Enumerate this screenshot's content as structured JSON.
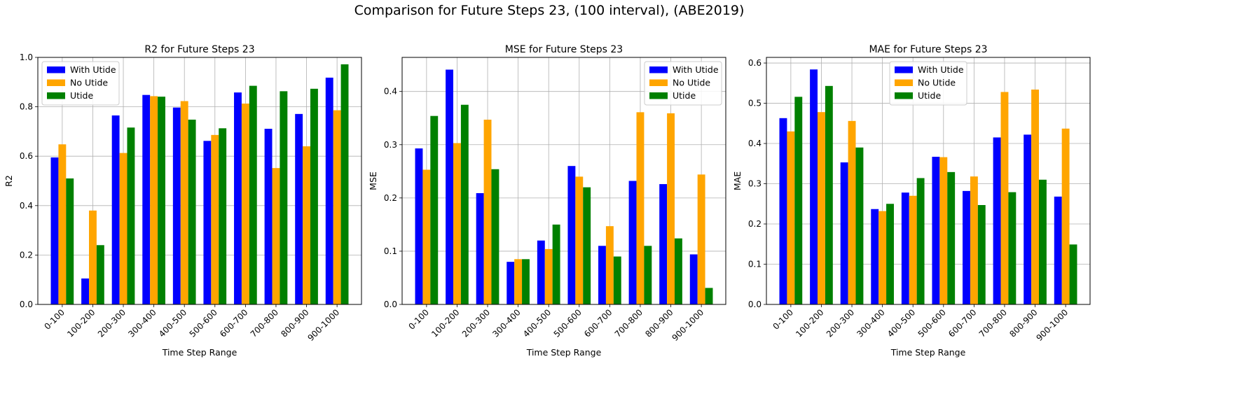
{
  "suptitle": "Comparison for Future Steps 23, (100 interval), (ABE2019)",
  "colors": {
    "With Utide": "#0000ff",
    "No Utide": "#ffa500",
    "Utide": "#008000"
  },
  "chart_data": [
    {
      "type": "bar",
      "title": "R2 for Future Steps 23",
      "xlabel": "Time Step Range",
      "ylabel": "R2",
      "ylim": [
        0,
        1.0
      ],
      "yticks": [
        "0.0",
        "0.2",
        "0.4",
        "0.6",
        "0.8",
        "1.0"
      ],
      "grid": true,
      "legend": "upper left",
      "categories": [
        "0-100",
        "100-200",
        "200-300",
        "300-400",
        "400-500",
        "500-600",
        "600-700",
        "700-800",
        "800-900",
        "900-1000"
      ],
      "series": [
        {
          "name": "With Utide",
          "values": [
            0.595,
            0.105,
            0.765,
            0.848,
            0.797,
            0.662,
            0.858,
            0.711,
            0.771,
            0.918
          ]
        },
        {
          "name": "No Utide",
          "values": [
            0.648,
            0.38,
            0.613,
            0.843,
            0.823,
            0.686,
            0.813,
            0.552,
            0.64,
            0.786
          ]
        },
        {
          "name": "Utide",
          "values": [
            0.51,
            0.24,
            0.716,
            0.841,
            0.748,
            0.713,
            0.885,
            0.863,
            0.873,
            0.972
          ]
        }
      ]
    },
    {
      "type": "bar",
      "title": "MSE for Future Steps 23",
      "xlabel": "Time Step Range",
      "ylabel": "MSE",
      "ylim": [
        0,
        0.464
      ],
      "yticks": [
        "0.0",
        "0.1",
        "0.2",
        "0.3",
        "0.4"
      ],
      "grid": true,
      "legend": "upper right",
      "categories": [
        "0-100",
        "100-200",
        "200-300",
        "300-400",
        "400-500",
        "500-600",
        "600-700",
        "700-800",
        "800-900",
        "900-1000"
      ],
      "series": [
        {
          "name": "With Utide",
          "values": [
            0.293,
            0.441,
            0.209,
            0.08,
            0.12,
            0.26,
            0.11,
            0.232,
            0.226,
            0.094
          ]
        },
        {
          "name": "No Utide",
          "values": [
            0.253,
            0.303,
            0.347,
            0.085,
            0.104,
            0.24,
            0.147,
            0.361,
            0.359,
            0.244
          ]
        },
        {
          "name": "Utide",
          "values": [
            0.354,
            0.375,
            0.254,
            0.085,
            0.15,
            0.22,
            0.09,
            0.11,
            0.124,
            0.031
          ]
        }
      ]
    },
    {
      "type": "bar",
      "title": "MAE for Future Steps 23",
      "xlabel": "Time Step Range",
      "ylabel": "MAE",
      "ylim": [
        0,
        0.614
      ],
      "yticks": [
        "0.0",
        "0.1",
        "0.2",
        "0.3",
        "0.4",
        "0.5",
        "0.6"
      ],
      "grid": true,
      "legend": "upper center",
      "categories": [
        "0-100",
        "100-200",
        "200-300",
        "300-400",
        "400-500",
        "500-600",
        "600-700",
        "700-800",
        "800-900",
        "900-1000"
      ],
      "series": [
        {
          "name": "With Utide",
          "values": [
            0.463,
            0.584,
            0.353,
            0.237,
            0.278,
            0.367,
            0.282,
            0.415,
            0.422,
            0.268
          ]
        },
        {
          "name": "No Utide",
          "values": [
            0.43,
            0.478,
            0.456,
            0.232,
            0.27,
            0.366,
            0.318,
            0.528,
            0.534,
            0.437
          ]
        },
        {
          "name": "Utide",
          "values": [
            0.516,
            0.543,
            0.39,
            0.25,
            0.314,
            0.329,
            0.247,
            0.279,
            0.31,
            0.149
          ]
        }
      ]
    }
  ]
}
